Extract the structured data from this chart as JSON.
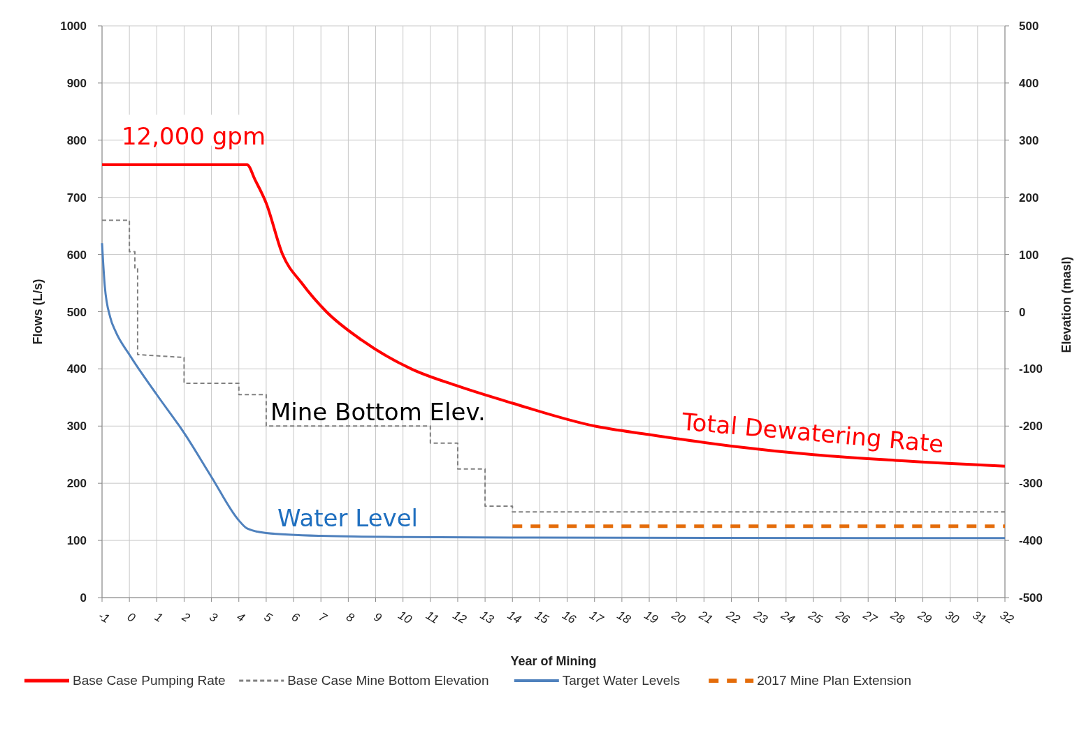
{
  "chart_data": {
    "type": "line",
    "xlabel": "Year of Mining",
    "ylabel": "Flows (L/s)",
    "y2label": "Elevation (masl)",
    "xlim": [
      -1,
      32
    ],
    "xticks": [
      -1,
      0,
      1,
      2,
      3,
      4,
      5,
      6,
      7,
      8,
      9,
      10,
      11,
      12,
      13,
      14,
      15,
      16,
      17,
      18,
      19,
      20,
      21,
      22,
      23,
      24,
      25,
      26,
      27,
      28,
      29,
      30,
      31,
      32
    ],
    "ylim": [
      0,
      1000
    ],
    "yticks": [
      0,
      100,
      200,
      300,
      400,
      500,
      600,
      700,
      800,
      900,
      1000
    ],
    "y2lim": [
      -500,
      500
    ],
    "y2ticks": [
      -500,
      -400,
      -300,
      -200,
      -100,
      0,
      100,
      200,
      300,
      400,
      500
    ],
    "grid": true,
    "legend": "bottom",
    "series": [
      {
        "name": "Base Case Pumping Rate",
        "color": "#ff0000",
        "line_style": "solid",
        "x": [
          -1,
          4.3,
          4.6,
          5,
          5.6,
          6.3,
          7.2,
          8.5,
          10.3,
          12,
          14,
          17,
          19,
          22,
          25,
          28,
          32
        ],
        "values": [
          757,
          757,
          730,
          690,
          600,
          550,
          500,
          450,
          400,
          370,
          340,
          300,
          285,
          265,
          250,
          240,
          230
        ]
      },
      {
        "name": "Base Case Mine Bottom Elevation",
        "color": "#808080",
        "line_style": "dashed",
        "axis": "y2",
        "x": [
          -1,
          0,
          0,
          0.2,
          0.2,
          0.3,
          0.3,
          2,
          2,
          4,
          4,
          5,
          5,
          11,
          11,
          12,
          12,
          13,
          13,
          14,
          14,
          32
        ],
        "values": [
          160,
          160,
          105,
          105,
          75,
          75,
          -75,
          -80,
          -125,
          -125,
          -145,
          -145,
          -200,
          -200,
          -230,
          -230,
          -275,
          -275,
          -340,
          -340,
          -350,
          -350
        ]
      },
      {
        "name": "Target Water Levels",
        "color": "#4f81bd",
        "line_style": "solid",
        "x": [
          -1,
          -0.9,
          -0.7,
          -0.5,
          0,
          1,
          2,
          3,
          4,
          4.3,
          5,
          7,
          10,
          14,
          32
        ],
        "values": [
          620,
          545,
          490,
          465,
          425,
          355,
          288,
          211,
          135,
          121,
          113,
          108,
          106,
          105,
          104
        ]
      },
      {
        "name": "2017 Mine Plan Extension",
        "color": "#e46c0a",
        "line_style": "dashed",
        "axis": "y2",
        "x": [
          14,
          32
        ],
        "values": [
          -375,
          -375
        ]
      }
    ],
    "annotations": [
      "12,000 gpm",
      "Mine Bottom Elev.",
      "Water Level",
      "Total Dewatering Rate"
    ]
  }
}
